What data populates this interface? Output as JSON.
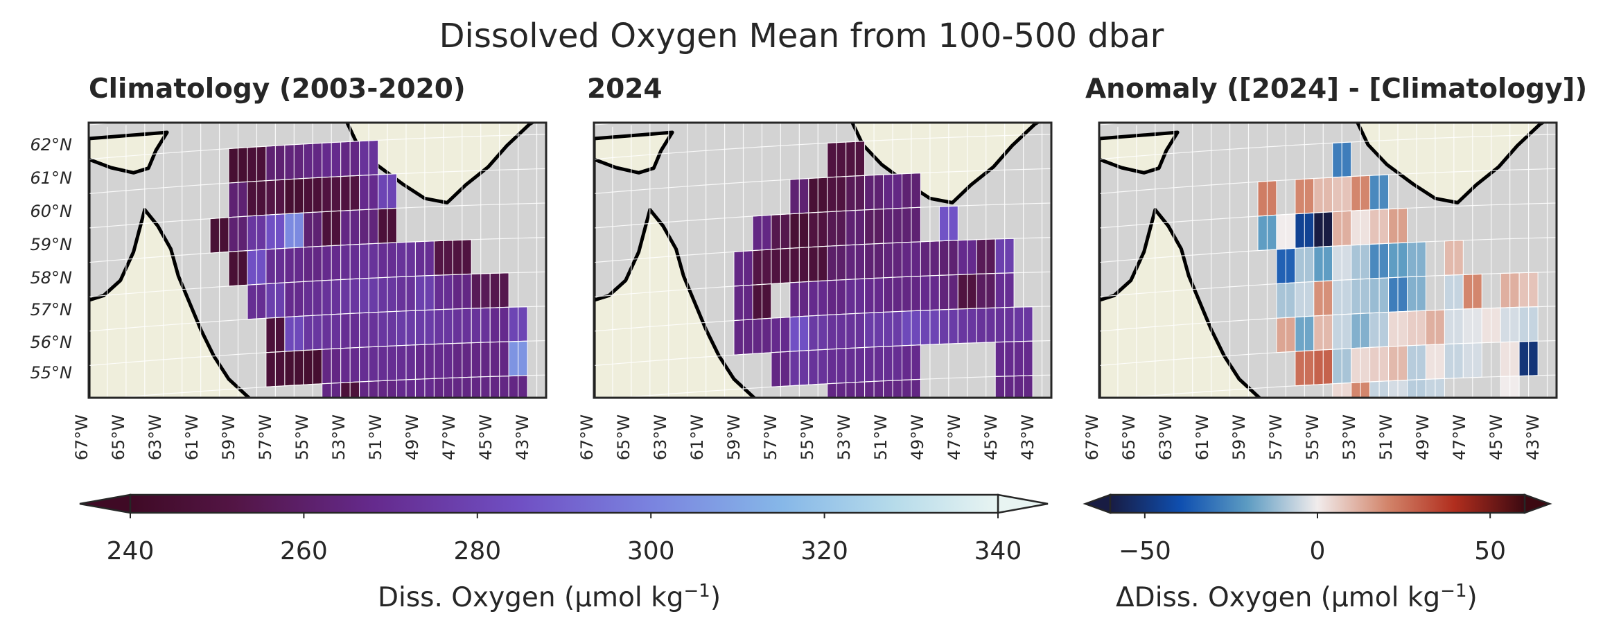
{
  "title": "Dissolved Oxygen Mean from 100-500 dbar",
  "panels": [
    {
      "title": "Climatology (2003-2020)",
      "colormap": "oxy"
    },
    {
      "title": "2024",
      "colormap": "oxy"
    },
    {
      "title": "Anomaly ([2024] - [Climatology])",
      "colormap": "balance"
    }
  ],
  "lat_ticks": [
    "62°N",
    "61°N",
    "60°N",
    "59°N",
    "58°N",
    "57°N",
    "56°N",
    "55°N"
  ],
  "lon_ticks": [
    "67°W",
    "65°W",
    "63°W",
    "61°W",
    "59°W",
    "57°W",
    "55°W",
    "53°W",
    "51°W",
    "49°W",
    "47°W",
    "45°W",
    "43°W"
  ],
  "colorbars": [
    {
      "label_main": "Diss. Oxygen (μmol kg",
      "label_sup": "−1",
      "label_end": ")",
      "ticks": [
        "240",
        "260",
        "280",
        "300",
        "320",
        "340"
      ],
      "range": [
        240,
        340
      ]
    },
    {
      "label_main": "ΔDiss. Oxygen (μmol kg",
      "label_sup": "−1",
      "label_end": ")",
      "ticks": [
        "−50",
        "0",
        "50"
      ],
      "range": [
        -60,
        60
      ]
    }
  ],
  "colors": {
    "land": "#efeedc",
    "ocean": "#d3d3d3",
    "coast": "#000000",
    "frame": "#262626",
    "grid": "#ffffff"
  },
  "chart_data": [
    {
      "type": "heatmap",
      "title": "Climatology (2003-2020)",
      "xlabel": "",
      "ylabel": "",
      "xlim": [
        -67,
        -42.5
      ],
      "ylim": [
        54.6,
        62.6
      ],
      "cell_size_deg": [
        1,
        1
      ],
      "cells": [
        [
          -59,
          61.5,
          245
        ],
        [
          -58,
          61.5,
          247
        ],
        [
          -57,
          61.5,
          262
        ],
        [
          -56,
          61.5,
          264
        ],
        [
          -55,
          61.5,
          266
        ],
        [
          -54,
          61.5,
          268
        ],
        [
          -53,
          61.5,
          266
        ],
        [
          -52,
          61.5,
          272
        ],
        [
          -59,
          60.5,
          262
        ],
        [
          -58,
          60.5,
          248
        ],
        [
          -57,
          60.5,
          252
        ],
        [
          -56,
          60.5,
          245
        ],
        [
          -55,
          60.5,
          247
        ],
        [
          -54,
          60.5,
          250
        ],
        [
          -53,
          60.5,
          250
        ],
        [
          -52,
          60.5,
          268
        ],
        [
          -51,
          60.5,
          280
        ],
        [
          -60,
          59.5,
          246
        ],
        [
          -59,
          59.5,
          262
        ],
        [
          -58,
          59.5,
          274
        ],
        [
          -57,
          59.5,
          285
        ],
        [
          -56,
          59.5,
          302
        ],
        [
          -55,
          59.5,
          262
        ],
        [
          -54,
          59.5,
          248
        ],
        [
          -53,
          59.5,
          266
        ],
        [
          -52,
          59.5,
          264
        ],
        [
          -51,
          59.5,
          248
        ],
        [
          -59,
          58.5,
          246
        ],
        [
          -58,
          58.5,
          285
        ],
        [
          -57,
          58.5,
          270
        ],
        [
          -56,
          58.5,
          268
        ],
        [
          -55,
          58.5,
          266
        ],
        [
          -54,
          58.5,
          268
        ],
        [
          -53,
          58.5,
          270
        ],
        [
          -52,
          58.5,
          272
        ],
        [
          -51,
          58.5,
          270
        ],
        [
          -50,
          58.5,
          272
        ],
        [
          -49,
          58.5,
          270
        ],
        [
          -48,
          58.5,
          252
        ],
        [
          -47,
          58.5,
          250
        ],
        [
          -58,
          57.5,
          270
        ],
        [
          -57,
          57.5,
          278
        ],
        [
          -56,
          57.5,
          268
        ],
        [
          -55,
          57.5,
          270
        ],
        [
          -54,
          57.5,
          272
        ],
        [
          -53,
          57.5,
          274
        ],
        [
          -52,
          57.5,
          276
        ],
        [
          -51,
          57.5,
          274
        ],
        [
          -50,
          57.5,
          272
        ],
        [
          -49,
          57.5,
          278
        ],
        [
          -48,
          57.5,
          270
        ],
        [
          -47,
          57.5,
          266
        ],
        [
          -46,
          57.5,
          256
        ],
        [
          -45,
          57.5,
          254
        ],
        [
          -57,
          56.5,
          248
        ],
        [
          -56,
          56.5,
          282
        ],
        [
          -55,
          56.5,
          274
        ],
        [
          -54,
          56.5,
          272
        ],
        [
          -53,
          56.5,
          270
        ],
        [
          -52,
          56.5,
          272
        ],
        [
          -51,
          56.5,
          274
        ],
        [
          -50,
          56.5,
          276
        ],
        [
          -49,
          56.5,
          276
        ],
        [
          -48,
          56.5,
          274
        ],
        [
          -47,
          56.5,
          272
        ],
        [
          -46,
          56.5,
          272
        ],
        [
          -45,
          56.5,
          268
        ],
        [
          -44,
          56.5,
          280
        ],
        [
          -57,
          55.5,
          247
        ],
        [
          -56,
          55.5,
          245
        ],
        [
          -55,
          55.5,
          244
        ],
        [
          -54,
          55.5,
          266
        ],
        [
          -53,
          55.5,
          268
        ],
        [
          -52,
          55.5,
          270
        ],
        [
          -51,
          55.5,
          270
        ],
        [
          -50,
          55.5,
          270
        ],
        [
          -49,
          55.5,
          268
        ],
        [
          -48,
          55.5,
          268
        ],
        [
          -47,
          55.5,
          266
        ],
        [
          -46,
          55.5,
          266
        ],
        [
          -45,
          55.5,
          266
        ],
        [
          -44,
          55.5,
          305
        ],
        [
          -54,
          54.5,
          266
        ],
        [
          -53,
          54.5,
          248
        ],
        [
          -52,
          54.5,
          266
        ],
        [
          -51,
          54.5,
          266
        ],
        [
          -50,
          54.5,
          268
        ],
        [
          -49,
          54.5,
          268
        ],
        [
          -48,
          54.5,
          266
        ],
        [
          -47,
          54.5,
          266
        ],
        [
          -46,
          54.5,
          266
        ],
        [
          -45,
          54.5,
          266
        ],
        [
          -44,
          54.5,
          266
        ]
      ]
    },
    {
      "type": "heatmap",
      "title": "2024",
      "xlabel": "",
      "ylabel": "",
      "xlim": [
        -67,
        -42.5
      ],
      "ylim": [
        54.6,
        62.6
      ],
      "cell_size_deg": [
        1,
        1
      ],
      "cells": [
        [
          -54,
          61.5,
          250
        ],
        [
          -53,
          61.5,
          250
        ],
        [
          -56,
          60.5,
          262
        ],
        [
          -55,
          60.5,
          246
        ],
        [
          -54,
          60.5,
          250
        ],
        [
          -53,
          60.5,
          256
        ],
        [
          -52,
          60.5,
          262
        ],
        [
          -51,
          60.5,
          266
        ],
        [
          -50,
          60.5,
          262
        ],
        [
          -58,
          59.5,
          266
        ],
        [
          -57,
          59.5,
          254
        ],
        [
          -56,
          59.5,
          246
        ],
        [
          -55,
          59.5,
          250
        ],
        [
          -54,
          59.5,
          255
        ],
        [
          -53,
          59.5,
          262
        ],
        [
          -52,
          59.5,
          258
        ],
        [
          -51,
          59.5,
          262
        ],
        [
          -50,
          59.5,
          262
        ],
        [
          -48,
          59.5,
          286
        ],
        [
          -59,
          58.5,
          266
        ],
        [
          -58,
          58.5,
          252
        ],
        [
          -57,
          58.5,
          250
        ],
        [
          -56,
          58.5,
          249
        ],
        [
          -55,
          58.5,
          248
        ],
        [
          -54,
          58.5,
          260
        ],
        [
          -53,
          58.5,
          264
        ],
        [
          -52,
          58.5,
          262
        ],
        [
          -51,
          58.5,
          264
        ],
        [
          -50,
          58.5,
          266
        ],
        [
          -49,
          58.5,
          264
        ],
        [
          -48,
          58.5,
          262
        ],
        [
          -47,
          58.5,
          268
        ],
        [
          -46,
          58.5,
          256
        ],
        [
          -45,
          58.5,
          278
        ],
        [
          -59,
          57.5,
          266
        ],
        [
          -58,
          57.5,
          248
        ],
        [
          -56,
          57.5,
          266
        ],
        [
          -55,
          57.5,
          268
        ],
        [
          -54,
          57.5,
          266
        ],
        [
          -53,
          57.5,
          270
        ],
        [
          -52,
          57.5,
          268
        ],
        [
          -51,
          57.5,
          266
        ],
        [
          -50,
          57.5,
          266
        ],
        [
          -49,
          57.5,
          268
        ],
        [
          -48,
          57.5,
          264
        ],
        [
          -47,
          57.5,
          250
        ],
        [
          -46,
          57.5,
          258
        ],
        [
          -45,
          57.5,
          270
        ],
        [
          -59,
          56.5,
          266
        ],
        [
          -58,
          56.5,
          266
        ],
        [
          -57,
          56.5,
          268
        ],
        [
          -56,
          56.5,
          285
        ],
        [
          -55,
          56.5,
          275
        ],
        [
          -54,
          56.5,
          272
        ],
        [
          -53,
          56.5,
          272
        ],
        [
          -52,
          56.5,
          276
        ],
        [
          -51,
          56.5,
          276
        ],
        [
          -50,
          56.5,
          282
        ],
        [
          -49,
          56.5,
          280
        ],
        [
          -48,
          56.5,
          276
        ],
        [
          -47,
          56.5,
          274
        ],
        [
          -46,
          56.5,
          272
        ],
        [
          -45,
          56.5,
          272
        ],
        [
          -44,
          56.5,
          274
        ],
        [
          -57,
          55.5,
          266
        ],
        [
          -56,
          55.5,
          274
        ],
        [
          -55,
          55.5,
          272
        ],
        [
          -54,
          55.5,
          270
        ],
        [
          -53,
          55.5,
          270
        ],
        [
          -52,
          55.5,
          270
        ],
        [
          -51,
          55.5,
          270
        ],
        [
          -50,
          55.5,
          268
        ],
        [
          -45,
          55.5,
          268
        ],
        [
          -44,
          55.5,
          268
        ],
        [
          -54,
          54.5,
          266
        ],
        [
          -53,
          54.5,
          266
        ],
        [
          -52,
          54.5,
          266
        ],
        [
          -51,
          54.5,
          266
        ],
        [
          -50,
          54.5,
          266
        ],
        [
          -45,
          54.5,
          266
        ],
        [
          -44,
          54.5,
          266
        ]
      ]
    },
    {
      "type": "heatmap",
      "title": "Anomaly ([2024] - [Climatology])",
      "xlabel": "",
      "ylabel": "",
      "xlim": [
        -67,
        -42.5
      ],
      "ylim": [
        54.6,
        62.6
      ],
      "cell_size_deg": [
        1,
        1
      ],
      "cells": [
        [
          -54,
          61.5,
          -28
        ],
        [
          -58,
          60.5,
          22
        ],
        [
          -56,
          60.5,
          20
        ],
        [
          -55,
          60.5,
          10
        ],
        [
          -54,
          60.5,
          8
        ],
        [
          -53,
          60.5,
          20
        ],
        [
          -52,
          60.5,
          -25
        ],
        [
          -58,
          59.5,
          -20
        ],
        [
          -57,
          59.5,
          0
        ],
        [
          -56,
          59.5,
          -45
        ],
        [
          -55,
          59.5,
          -60
        ],
        [
          -54,
          59.5,
          12
        ],
        [
          -53,
          59.5,
          2
        ],
        [
          -52,
          59.5,
          8
        ],
        [
          -51,
          59.5,
          15
        ],
        [
          -57,
          58.5,
          -35
        ],
        [
          -56,
          58.5,
          -10
        ],
        [
          -55,
          58.5,
          -20
        ],
        [
          -54,
          58.5,
          -4
        ],
        [
          -53,
          58.5,
          -10
        ],
        [
          -52,
          58.5,
          -25
        ],
        [
          -51,
          58.5,
          -20
        ],
        [
          -50,
          58.5,
          -15
        ],
        [
          -48,
          58.5,
          10
        ],
        [
          -57,
          57.5,
          -10
        ],
        [
          -56,
          57.5,
          -6
        ],
        [
          -55,
          57.5,
          18
        ],
        [
          -54,
          57.5,
          -6
        ],
        [
          -53,
          57.5,
          -10
        ],
        [
          -52,
          57.5,
          -12
        ],
        [
          -51,
          57.5,
          -28
        ],
        [
          -50,
          57.5,
          -15
        ],
        [
          -48,
          57.5,
          -6
        ],
        [
          -47,
          57.5,
          20
        ],
        [
          -45,
          57.5,
          12
        ],
        [
          -44,
          57.5,
          8
        ],
        [
          -57,
          56.5,
          14
        ],
        [
          -56,
          56.5,
          -18
        ],
        [
          -55,
          56.5,
          10
        ],
        [
          -54,
          56.5,
          -6
        ],
        [
          -53,
          56.5,
          -15
        ],
        [
          -52,
          56.5,
          -8
        ],
        [
          -51,
          56.5,
          4
        ],
        [
          -50,
          56.5,
          6
        ],
        [
          -49,
          56.5,
          12
        ],
        [
          -48,
          56.5,
          -4
        ],
        [
          -47,
          56.5,
          -2
        ],
        [
          -46,
          56.5,
          2
        ],
        [
          -45,
          56.5,
          -4
        ],
        [
          -44,
          56.5,
          -6
        ],
        [
          -56,
          55.5,
          25
        ],
        [
          -55,
          55.5,
          28
        ],
        [
          -54,
          55.5,
          -10
        ],
        [
          -53,
          55.5,
          4
        ],
        [
          -52,
          55.5,
          6
        ],
        [
          -51,
          55.5,
          10
        ],
        [
          -50,
          55.5,
          -8
        ],
        [
          -49,
          55.5,
          2
        ],
        [
          -48,
          55.5,
          -6
        ],
        [
          -47,
          55.5,
          -4
        ],
        [
          -45,
          55.5,
          2
        ],
        [
          -44,
          55.5,
          -50
        ],
        [
          -54,
          54.5,
          4
        ],
        [
          -53,
          54.5,
          20
        ],
        [
          -52,
          54.5,
          -6
        ],
        [
          -51,
          54.5,
          -4
        ],
        [
          -50,
          54.5,
          -8
        ],
        [
          -49,
          54.5,
          -6
        ],
        [
          -45,
          54.5,
          0
        ]
      ]
    }
  ]
}
